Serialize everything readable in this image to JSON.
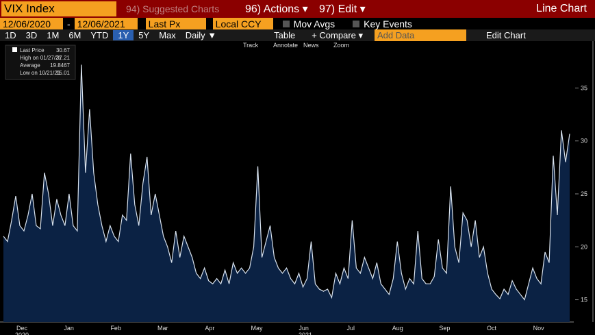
{
  "ui": {
    "ticker": "VIX Index",
    "suggested": "94) Suggested Charts",
    "actions": "96) Actions ▾",
    "edit": "97) Edit ▾",
    "chart_kind": "Line Chart",
    "start_date": "12/06/2020",
    "dash": "-",
    "end_date": "12/06/2021",
    "field": "Last Px",
    "currency": "Local CCY",
    "mov_avgs": "Mov Avgs",
    "key_events": "Key Events",
    "periods": [
      "1D",
      "3D",
      "1M",
      "6M",
      "YTD",
      "1Y",
      "5Y",
      "Max"
    ],
    "frequency": "Daily ▼",
    "table": "Table",
    "compare": "+ Compare ▾",
    "add_data": "Add Data",
    "edit_chart": "Edit Chart",
    "tools": [
      "Track",
      "Annotate",
      "News",
      "Zoom"
    ]
  },
  "chart_data": {
    "type": "line",
    "legend": [
      {
        "label": "Last Price",
        "value": 30.67
      },
      {
        "label": "High on 01/27/21",
        "value": 37.21
      },
      {
        "label": "Average",
        "value": 19.8467
      },
      {
        "label": "Low on 10/21/21",
        "value": 15.01
      }
    ],
    "months": [
      "Dec",
      "Jan",
      "Feb",
      "Mar",
      "Apr",
      "May",
      "Jun",
      "Jul",
      "Aug",
      "Sep",
      "Oct",
      "Nov"
    ],
    "years": [
      "2020",
      "2021"
    ],
    "series": [
      {
        "name": "Last Price",
        "color": "#d8e2ee",
        "fill": "#0b2244",
        "values": [
          21,
          20.5,
          22.5,
          24.8,
          22,
          21.5,
          23,
          25,
          22,
          21.7,
          27,
          25,
          22,
          24.5,
          23,
          22,
          25,
          22,
          21.5,
          37.2,
          27,
          33,
          27,
          24,
          22,
          20.5,
          22,
          21,
          20.5,
          23,
          22.5,
          28.8,
          24,
          22,
          26,
          28.5,
          23,
          25,
          23,
          21,
          20,
          18.5,
          21.5,
          19,
          21,
          20,
          19,
          17.5,
          17,
          18,
          16.8,
          16.5,
          17,
          16.5,
          17.8,
          16.5,
          18.5,
          17.5,
          18,
          17.5,
          18,
          20,
          27.6,
          19,
          20.5,
          22,
          19,
          18,
          17.5,
          18,
          17,
          16.5,
          17.5,
          16.2,
          17,
          20.5,
          16.5,
          16,
          15.8,
          16,
          15.2,
          17.5,
          16.5,
          18,
          17,
          22.5,
          18,
          17.5,
          19,
          18,
          17,
          18.5,
          16.5,
          16,
          15.5,
          17,
          20.5,
          17.5,
          16,
          17,
          16.5,
          21.5,
          17,
          16.5,
          16.5,
          17.2,
          20.7,
          18,
          17.5,
          25.7,
          20,
          18.5,
          23.2,
          22.5,
          20,
          22.5,
          19,
          20,
          17.5,
          16,
          15.5,
          15.1,
          16,
          15.5,
          16.8,
          16,
          15.5,
          15,
          16.5,
          18,
          17,
          16.5,
          19.5,
          18.5,
          28.6,
          23,
          31,
          28,
          30.67
        ]
      }
    ],
    "ylim": [
      12.9,
      39.3
    ],
    "yticks": [
      15,
      20,
      25,
      30,
      35
    ]
  }
}
